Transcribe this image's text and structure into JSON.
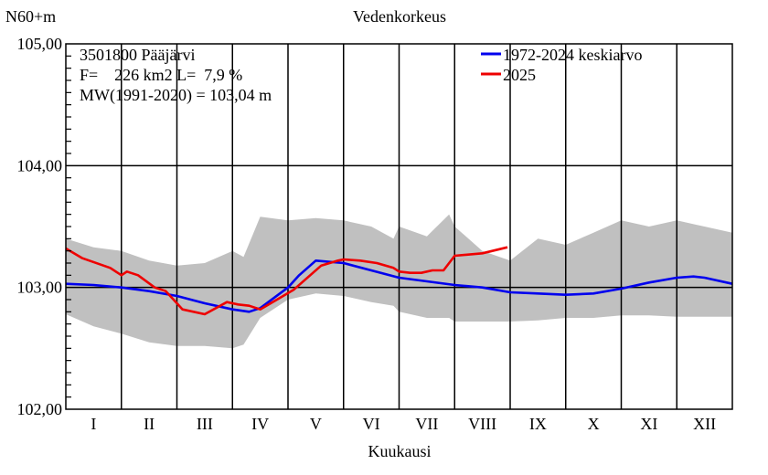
{
  "chart_data": {
    "type": "line",
    "title": "Vedenkorkeus",
    "ylabel": "N60+m",
    "xlabel": "Kuukausi",
    "ylim": [
      102.0,
      105.0
    ],
    "yticks": [
      "102,00",
      "103,00",
      "104,00",
      "105,00"
    ],
    "months": [
      "I",
      "II",
      "III",
      "IV",
      "V",
      "VI",
      "VII",
      "VIII",
      "IX",
      "X",
      "XI",
      "XII"
    ],
    "xlim": [
      0,
      12
    ],
    "grid": true,
    "legend_position": "top-right",
    "info": {
      "line1": "3501800 Pääjärvi",
      "line2": "F=    226 km2 L=  7,9 %",
      "line3": "MW(1991-2020) = 103,04 m"
    },
    "colors": {
      "band": "#c0c0c0",
      "mean": "#0000ee",
      "current": "#ee0000",
      "grid": "#000000"
    },
    "band": {
      "name": "",
      "x": [
        0,
        0.5,
        1,
        1.5,
        2,
        2.5,
        3,
        3.2,
        3.5,
        4,
        4.5,
        5,
        5.5,
        5.9,
        6,
        6.5,
        6.9,
        7,
        7.5,
        8,
        8.5,
        9,
        9.5,
        10,
        10.5,
        11,
        11.5,
        12
      ],
      "upper": [
        103.4,
        103.33,
        103.3,
        103.22,
        103.18,
        103.2,
        103.3,
        103.25,
        103.58,
        103.55,
        103.57,
        103.55,
        103.5,
        103.4,
        103.5,
        103.42,
        103.6,
        103.5,
        103.3,
        103.22,
        103.4,
        103.35,
        103.45,
        103.55,
        103.5,
        103.55,
        103.5,
        103.45
      ],
      "lower": [
        102.78,
        102.68,
        102.62,
        102.55,
        102.52,
        102.52,
        102.5,
        102.53,
        102.75,
        102.9,
        102.95,
        102.93,
        102.88,
        102.85,
        102.8,
        102.75,
        102.75,
        102.72,
        102.72,
        102.72,
        102.73,
        102.75,
        102.75,
        102.77,
        102.77,
        102.76,
        102.76,
        102.76
      ]
    },
    "series": [
      {
        "name": "1972-2024 keskiarvo",
        "x": [
          0,
          0.5,
          1,
          1.5,
          2,
          2.5,
          3,
          3.3,
          3.5,
          4,
          4.2,
          4.5,
          5,
          5.5,
          6,
          6.5,
          7,
          7.5,
          8,
          8.5,
          9,
          9.5,
          10,
          10.5,
          11,
          11.3,
          11.5,
          12
        ],
        "y": [
          103.03,
          103.02,
          103.0,
          102.97,
          102.93,
          102.87,
          102.82,
          102.8,
          102.83,
          103.0,
          103.1,
          103.22,
          103.2,
          103.14,
          103.08,
          103.05,
          103.02,
          103.0,
          102.96,
          102.95,
          102.94,
          102.95,
          102.99,
          103.04,
          103.08,
          103.09,
          103.08,
          103.03
        ]
      },
      {
        "name": "2025",
        "x": [
          0,
          0.3,
          0.8,
          1,
          1.1,
          1.3,
          1.6,
          1.8,
          2,
          2.1,
          2.5,
          2.9,
          3.1,
          3.3,
          3.5,
          3.8,
          4.1,
          4.4,
          4.6,
          4.9,
          5,
          5.3,
          5.6,
          5.9,
          6,
          6.2,
          6.4,
          6.6,
          6.8,
          7,
          7.5,
          7.95
        ],
        "y": [
          103.32,
          103.24,
          103.16,
          103.1,
          103.13,
          103.1,
          103.0,
          102.97,
          102.87,
          102.82,
          102.78,
          102.88,
          102.86,
          102.85,
          102.82,
          102.9,
          102.98,
          103.1,
          103.18,
          103.22,
          103.23,
          103.22,
          103.2,
          103.16,
          103.13,
          103.12,
          103.12,
          103.14,
          103.14,
          103.26,
          103.28,
          103.33
        ]
      }
    ]
  }
}
